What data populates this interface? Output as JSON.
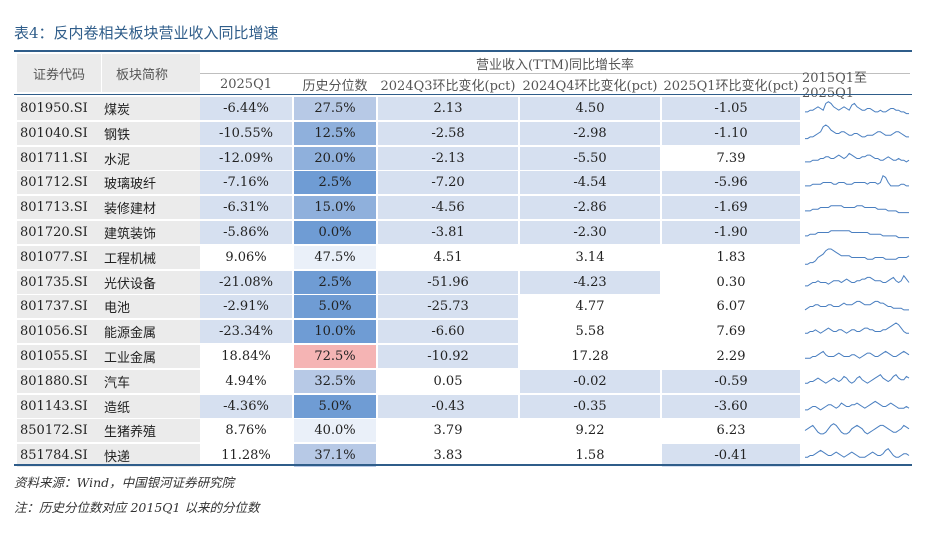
{
  "title": "表4：反内卷相关板块营业收入同比增速",
  "header": {
    "code": "证券代码",
    "name": "板块简称",
    "group": "营业收入(TTM)同比增长率",
    "cols": [
      "2025Q1",
      "历史分位数",
      "2024Q3环比变化(pct)",
      "2024Q4环比变化(pct)",
      "2025Q1环比变化(pct)",
      "2015Q1至2025Q1"
    ]
  },
  "colors": {
    "light": "#d6e0f0",
    "mid": "#b7c9e6",
    "blue": "#8fb0dc",
    "deep": "#6f9cd4",
    "pale": "#eaf0f9",
    "pink": "#f5b4b4",
    "line": "#4a7fc0"
  },
  "rows": [
    {
      "code": "801950.SI",
      "name": "煤炭",
      "v1": "-6.44%",
      "v2": "27.5%",
      "v3": "2.13",
      "v4": "4.50",
      "v5": "-1.05",
      "b": [
        "light",
        "mid",
        "light",
        "light",
        "light"
      ]
    },
    {
      "code": "801040.SI",
      "name": "钢铁",
      "v1": "-10.55%",
      "v2": "12.5%",
      "v3": "-2.58",
      "v4": "-2.98",
      "v5": "-1.10",
      "b": [
        "light",
        "blue",
        "light",
        "light",
        "light"
      ]
    },
    {
      "code": "801711.SI",
      "name": "水泥",
      "v1": "-12.09%",
      "v2": "20.0%",
      "v3": "-2.13",
      "v4": "-5.50",
      "v5": "7.39",
      "b": [
        "light",
        "blue",
        "light",
        "light",
        "none"
      ]
    },
    {
      "code": "801712.SI",
      "name": "玻璃玻纤",
      "v1": "-7.16%",
      "v2": "2.5%",
      "v3": "-7.20",
      "v4": "-4.54",
      "v5": "-5.96",
      "b": [
        "light",
        "deep",
        "light",
        "light",
        "light"
      ]
    },
    {
      "code": "801713.SI",
      "name": "装修建材",
      "v1": "-6.31%",
      "v2": "15.0%",
      "v3": "-4.56",
      "v4": "-2.86",
      "v5": "-1.69",
      "b": [
        "light",
        "blue",
        "light",
        "light",
        "light"
      ]
    },
    {
      "code": "801720.SI",
      "name": "建筑装饰",
      "v1": "-5.86%",
      "v2": "0.0%",
      "v3": "-3.81",
      "v4": "-2.30",
      "v5": "-1.90",
      "b": [
        "light",
        "deep",
        "light",
        "light",
        "light"
      ]
    },
    {
      "code": "801077.SI",
      "name": "工程机械",
      "v1": "9.06%",
      "v2": "47.5%",
      "v3": "4.51",
      "v4": "3.14",
      "v5": "1.83",
      "b": [
        "none",
        "pale",
        "none",
        "none",
        "none"
      ]
    },
    {
      "code": "801735.SI",
      "name": "光伏设备",
      "v1": "-21.08%",
      "v2": "2.5%",
      "v3": "-51.96",
      "v4": "-4.23",
      "v5": "0.30",
      "b": [
        "light",
        "deep",
        "light",
        "light",
        "none"
      ]
    },
    {
      "code": "801737.SI",
      "name": "电池",
      "v1": "-2.91%",
      "v2": "5.0%",
      "v3": "-25.73",
      "v4": "4.77",
      "v5": "6.07",
      "b": [
        "light",
        "deep",
        "light",
        "none",
        "none"
      ]
    },
    {
      "code": "801056.SI",
      "name": "能源金属",
      "v1": "-23.34%",
      "v2": "10.0%",
      "v3": "-6.60",
      "v4": "5.58",
      "v5": "7.69",
      "b": [
        "light",
        "deep",
        "light",
        "none",
        "none"
      ]
    },
    {
      "code": "801055.SI",
      "name": "工业金属",
      "v1": "18.84%",
      "v2": "72.5%",
      "v3": "-10.92",
      "v4": "17.28",
      "v5": "2.29",
      "b": [
        "none",
        "pink",
        "light",
        "none",
        "none"
      ]
    },
    {
      "code": "801880.SI",
      "name": "汽车",
      "v1": "4.94%",
      "v2": "32.5%",
      "v3": "0.05",
      "v4": "-0.02",
      "v5": "-0.59",
      "b": [
        "none",
        "mid",
        "none",
        "light",
        "light"
      ]
    },
    {
      "code": "801143.SI",
      "name": "造纸",
      "v1": "-4.36%",
      "v2": "5.0%",
      "v3": "-0.43",
      "v4": "-0.35",
      "v5": "-3.60",
      "b": [
        "light",
        "deep",
        "light",
        "light",
        "light"
      ]
    },
    {
      "code": "850172.SI",
      "name": "生猪养殖",
      "v1": "8.76%",
      "v2": "40.0%",
      "v3": "3.79",
      "v4": "9.22",
      "v5": "6.23",
      "b": [
        "none",
        "pale",
        "none",
        "none",
        "none"
      ]
    },
    {
      "code": "851784.SI",
      "name": "快递",
      "v1": "11.28%",
      "v2": "37.1%",
      "v3": "3.83",
      "v4": "1.58",
      "v5": "-0.41",
      "b": [
        "none",
        "mid",
        "none",
        "none",
        "light"
      ]
    }
  ],
  "sparks": [
    [
      3,
      3,
      4,
      4,
      5,
      6,
      5,
      4,
      8,
      9,
      8,
      6,
      5,
      4,
      5,
      6,
      5,
      4,
      7,
      8,
      6,
      5,
      4,
      4,
      5,
      5,
      4,
      3,
      3,
      4,
      3,
      3,
      4,
      5,
      5,
      4,
      4,
      3,
      3,
      2,
      2
    ],
    [
      2,
      2,
      3,
      3,
      4,
      5,
      6,
      9,
      10,
      9,
      7,
      6,
      5,
      5,
      6,
      6,
      5,
      4,
      4,
      5,
      5,
      4,
      3,
      3,
      4,
      4,
      4,
      5,
      6,
      6,
      5,
      4,
      4,
      4,
      5,
      6,
      6,
      5,
      4,
      3,
      3
    ],
    [
      3,
      3,
      3,
      4,
      4,
      4,
      5,
      5,
      6,
      6,
      5,
      5,
      6,
      7,
      6,
      5,
      6,
      8,
      7,
      6,
      5,
      5,
      6,
      6,
      7,
      7,
      6,
      5,
      5,
      4,
      4,
      5,
      6,
      5,
      4,
      4,
      5,
      4,
      4,
      3,
      4
    ],
    [
      3,
      3,
      3,
      4,
      4,
      4,
      4,
      5,
      5,
      5,
      5,
      4,
      4,
      5,
      5,
      5,
      4,
      4,
      4,
      5,
      5,
      5,
      5,
      5,
      4,
      5,
      5,
      5,
      4,
      5,
      9,
      8,
      5,
      3,
      3,
      3,
      3,
      4,
      4,
      3,
      3
    ],
    [
      3,
      3,
      3,
      4,
      4,
      4,
      5,
      5,
      5,
      5,
      6,
      6,
      6,
      6,
      6,
      5,
      5,
      5,
      5,
      5,
      6,
      6,
      6,
      5,
      5,
      5,
      5,
      5,
      4,
      4,
      4,
      4,
      3,
      3,
      3,
      3,
      2,
      2,
      2,
      2,
      2
    ],
    [
      3,
      3,
      4,
      4,
      4,
      5,
      5,
      5,
      5,
      5,
      6,
      6,
      6,
      6,
      6,
      6,
      6,
      6,
      5,
      5,
      5,
      5,
      5,
      5,
      5,
      4,
      4,
      4,
      4,
      4,
      3,
      3,
      3,
      3,
      3,
      3,
      2,
      2,
      2,
      2,
      2
    ],
    [
      1,
      1,
      2,
      2,
      3,
      5,
      6,
      7,
      9,
      10,
      10,
      9,
      8,
      7,
      6,
      6,
      6,
      6,
      5,
      5,
      5,
      5,
      5,
      5,
      4,
      4,
      4,
      5,
      5,
      5,
      5,
      4,
      4,
      4,
      4,
      4,
      5,
      5,
      5,
      5,
      6
    ],
    [
      3,
      3,
      4,
      5,
      5,
      6,
      5,
      5,
      5,
      4,
      5,
      6,
      6,
      6,
      5,
      6,
      7,
      6,
      5,
      5,
      6,
      6,
      7,
      7,
      8,
      8,
      7,
      6,
      6,
      6,
      5,
      5,
      6,
      7,
      8,
      6,
      5,
      6,
      9,
      7,
      5
    ],
    [
      3,
      4,
      5,
      5,
      6,
      6,
      5,
      5,
      5,
      6,
      6,
      5,
      5,
      5,
      6,
      7,
      6,
      6,
      6,
      7,
      8,
      8,
      7,
      6,
      6,
      6,
      7,
      8,
      8,
      7,
      7,
      6,
      5,
      5,
      4,
      4,
      4,
      4,
      3,
      3,
      3
    ],
    [
      4,
      4,
      5,
      5,
      6,
      5,
      4,
      5,
      6,
      7,
      6,
      5,
      5,
      6,
      6,
      5,
      4,
      5,
      6,
      6,
      5,
      5,
      6,
      7,
      7,
      6,
      6,
      5,
      5,
      5,
      6,
      6,
      7,
      8,
      9,
      10,
      9,
      7,
      5,
      4,
      4
    ],
    [
      4,
      4,
      4,
      5,
      5,
      6,
      7,
      8,
      6,
      5,
      5,
      5,
      6,
      7,
      6,
      5,
      5,
      5,
      6,
      6,
      5,
      4,
      5,
      6,
      7,
      7,
      6,
      5,
      5,
      6,
      7,
      8,
      7,
      6,
      5,
      5,
      6,
      7,
      8,
      7,
      6
    ],
    [
      4,
      4,
      5,
      5,
      6,
      7,
      6,
      5,
      4,
      5,
      6,
      7,
      6,
      5,
      6,
      8,
      7,
      5,
      4,
      5,
      7,
      8,
      6,
      5,
      4,
      5,
      6,
      7,
      8,
      9,
      7,
      6,
      5,
      6,
      8,
      9,
      7,
      6,
      6,
      8,
      7
    ],
    [
      3,
      3,
      4,
      5,
      5,
      4,
      3,
      4,
      5,
      6,
      6,
      5,
      4,
      5,
      7,
      6,
      5,
      5,
      6,
      6,
      7,
      6,
      5,
      4,
      5,
      6,
      7,
      8,
      7,
      6,
      5,
      5,
      6,
      7,
      6,
      5,
      4,
      4,
      4,
      5,
      4
    ],
    [
      5,
      6,
      7,
      8,
      6,
      4,
      3,
      3,
      4,
      6,
      8,
      9,
      8,
      6,
      4,
      3,
      3,
      4,
      6,
      7,
      8,
      7,
      6,
      4,
      3,
      4,
      5,
      6,
      7,
      8,
      8,
      7,
      6,
      5,
      4,
      4,
      5,
      6,
      8,
      7,
      6
    ],
    [
      4,
      4,
      5,
      5,
      6,
      7,
      8,
      7,
      6,
      5,
      5,
      6,
      7,
      6,
      5,
      4,
      5,
      6,
      7,
      6,
      5,
      4,
      4,
      4,
      5,
      6,
      7,
      6,
      5,
      5,
      6,
      8,
      9,
      7,
      5,
      4,
      4,
      5,
      6,
      6,
      5
    ]
  ],
  "source": "资料来源：Wind，中国银河证券研究院",
  "note": "注：历史分位数对应 2015Q1 以来的分位数"
}
